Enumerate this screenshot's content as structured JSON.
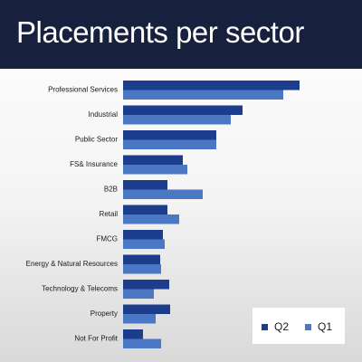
{
  "header": {
    "title": "Placements per sector"
  },
  "chart_data": {
    "type": "bar",
    "orientation": "horizontal",
    "title": "Placements per sector",
    "categories": [
      "Professional Services",
      "Industrial",
      "Public Sector",
      "FS& Insurance",
      "B2B",
      "Retail",
      "FMCG",
      "Energy & Natural Resources",
      "Technology & Telecoms",
      "Property",
      "Not For Profit"
    ],
    "series": [
      {
        "name": "Q2",
        "color": "#1b3d8c",
        "values": [
          195,
          132,
          103,
          66,
          49,
          49,
          44,
          41,
          51,
          52,
          22
        ]
      },
      {
        "name": "Q1",
        "color": "#4a78c4",
        "values": [
          177,
          119,
          103,
          71,
          88,
          62,
          46,
          42,
          34,
          36,
          42
        ]
      }
    ],
    "xlim": [
      0,
      200
    ],
    "grid": false,
    "legend_position": "bottom-right"
  },
  "legend": {
    "items": [
      "Q2",
      "Q1"
    ]
  }
}
